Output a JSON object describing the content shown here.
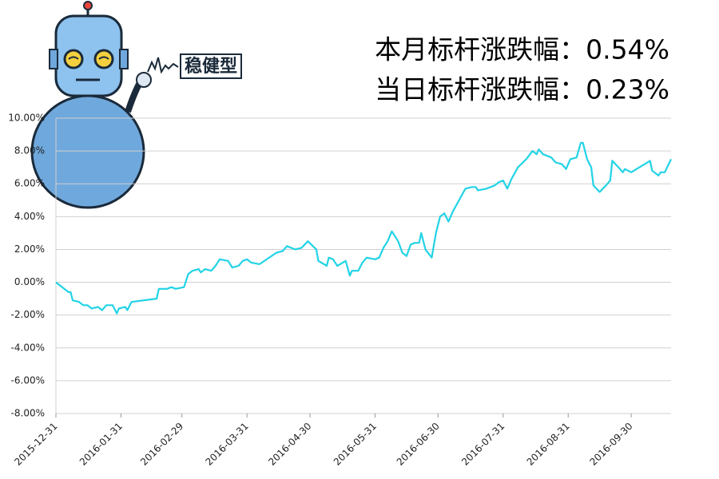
{
  "chart_data": {
    "type": "line",
    "badge": "稳健型",
    "annotations": [
      "本月标杆涨跌幅：0.54%",
      "当日标杆涨跌幅：0.23%"
    ],
    "x": [
      "2015-12-31",
      "2016-01-04",
      "2016-01-06",
      "2016-01-07",
      "2016-01-08",
      "2016-01-11",
      "2016-01-13",
      "2016-01-15",
      "2016-01-17",
      "2016-01-20",
      "2016-01-22",
      "2016-01-24",
      "2016-01-27",
      "2016-01-29",
      "2016-01-30",
      "2016-02-02",
      "2016-02-03",
      "2016-02-05",
      "2016-02-17",
      "2016-02-18",
      "2016-02-22",
      "2016-02-24",
      "2016-02-26",
      "2016-03-01",
      "2016-03-03",
      "2016-03-05",
      "2016-03-08",
      "2016-03-09",
      "2016-03-11",
      "2016-03-14",
      "2016-03-16",
      "2016-03-18",
      "2016-03-22",
      "2016-03-24",
      "2016-03-27",
      "2016-03-29",
      "2016-03-31",
      "2016-04-02",
      "2016-04-06",
      "2016-04-14",
      "2016-04-17",
      "2016-04-19",
      "2016-04-21",
      "2016-04-23",
      "2016-04-26",
      "2016-04-29",
      "2016-05-03",
      "2016-05-04",
      "2016-05-08",
      "2016-05-09",
      "2016-05-11",
      "2016-05-13",
      "2016-05-17",
      "2016-05-19",
      "2016-05-20",
      "2016-05-23",
      "2016-05-25",
      "2016-05-27",
      "2016-05-31",
      "2016-06-02",
      "2016-06-04",
      "2016-06-06",
      "2016-06-08",
      "2016-06-11",
      "2016-06-13",
      "2016-06-15",
      "2016-06-17",
      "2016-06-19",
      "2016-06-21",
      "2016-06-22",
      "2016-06-24",
      "2016-06-27",
      "2016-06-29",
      "2016-07-01",
      "2016-07-03",
      "2016-07-05",
      "2016-07-07",
      "2016-07-10",
      "2016-07-13",
      "2016-07-16",
      "2016-07-18",
      "2016-07-19",
      "2016-07-23",
      "2016-07-27",
      "2016-07-29",
      "2016-07-31",
      "2016-08-02",
      "2016-08-04",
      "2016-08-07",
      "2016-08-11",
      "2016-08-14",
      "2016-08-16",
      "2016-08-17",
      "2016-08-19",
      "2016-08-23",
      "2016-08-25",
      "2016-08-28",
      "2016-08-30",
      "2016-09-01",
      "2016-09-04",
      "2016-09-06",
      "2016-09-07",
      "2016-09-09",
      "2016-09-11",
      "2016-09-12",
      "2016-09-15",
      "2016-09-18",
      "2016-09-20",
      "2016-09-21",
      "2016-09-24",
      "2016-09-26",
      "2016-09-27",
      "2016-09-30",
      "2016-10-09",
      "2016-10-10",
      "2016-10-13",
      "2016-10-14",
      "2016-10-16",
      "2016-10-19"
    ],
    "values": [
      0,
      -0.4,
      -0.6,
      -0.6,
      -1.1,
      -1.2,
      -1.4,
      -1.4,
      -1.6,
      -1.5,
      -1.7,
      -1.4,
      -1.4,
      -1.9,
      -1.6,
      -1.5,
      -1.7,
      -1.2,
      -1.0,
      -0.4,
      -0.4,
      -0.3,
      -0.4,
      -0.3,
      0.5,
      0.7,
      0.8,
      0.6,
      0.8,
      0.7,
      1.0,
      1.4,
      1.3,
      0.9,
      1.0,
      1.3,
      1.4,
      1.2,
      1.1,
      1.8,
      1.9,
      2.2,
      2.1,
      2.0,
      2.1,
      2.5,
      2.0,
      1.3,
      1.0,
      1.5,
      1.4,
      1.0,
      1.3,
      0.4,
      0.7,
      0.7,
      1.2,
      1.5,
      1.4,
      1.5,
      2.1,
      2.5,
      3.1,
      2.5,
      1.8,
      1.6,
      2.3,
      2.4,
      2.4,
      3.0,
      2.0,
      1.5,
      3.0,
      4.0,
      4.2,
      3.7,
      4.3,
      5.0,
      5.7,
      5.8,
      5.8,
      5.6,
      5.7,
      5.9,
      6.1,
      6.2,
      5.7,
      6.3,
      7.0,
      7.5,
      8.0,
      7.8,
      8.1,
      7.8,
      7.6,
      7.3,
      7.2,
      6.9,
      7.5,
      7.6,
      8.5,
      8.5,
      7.5,
      7.0,
      5.9,
      5.5,
      5.9,
      6.2,
      7.4,
      7.0,
      6.7,
      6.9,
      6.7,
      7.4,
      6.8,
      6.5,
      6.7,
      6.7,
      7.5
    ],
    "color": "#22d3e6",
    "xlim": [
      "2015-12-31",
      "2016-10-19"
    ],
    "xticks": [
      "2015-12-31",
      "2016-01-31",
      "2016-02-29",
      "2016-03-31",
      "2016-04-30",
      "2016-05-31",
      "2016-06-30",
      "2016-07-31",
      "2016-08-31",
      "2016-09-30"
    ],
    "ylim": [
      -8,
      10
    ],
    "yticks": [
      {
        "value": -8,
        "label": "-8.00%"
      },
      {
        "value": -6,
        "label": "-6.00%"
      },
      {
        "value": -4,
        "label": "-4.00%"
      },
      {
        "value": -2,
        "label": "-2.00%"
      },
      {
        "value": 0,
        "label": "0.00%"
      },
      {
        "value": 2,
        "label": "2.00%"
      },
      {
        "value": 4,
        "label": "4.00%"
      },
      {
        "value": 6,
        "label": "6.00%"
      },
      {
        "value": 8,
        "label": "8.00%"
      },
      {
        "value": 10,
        "label": "10.00%"
      }
    ],
    "grid": true
  }
}
